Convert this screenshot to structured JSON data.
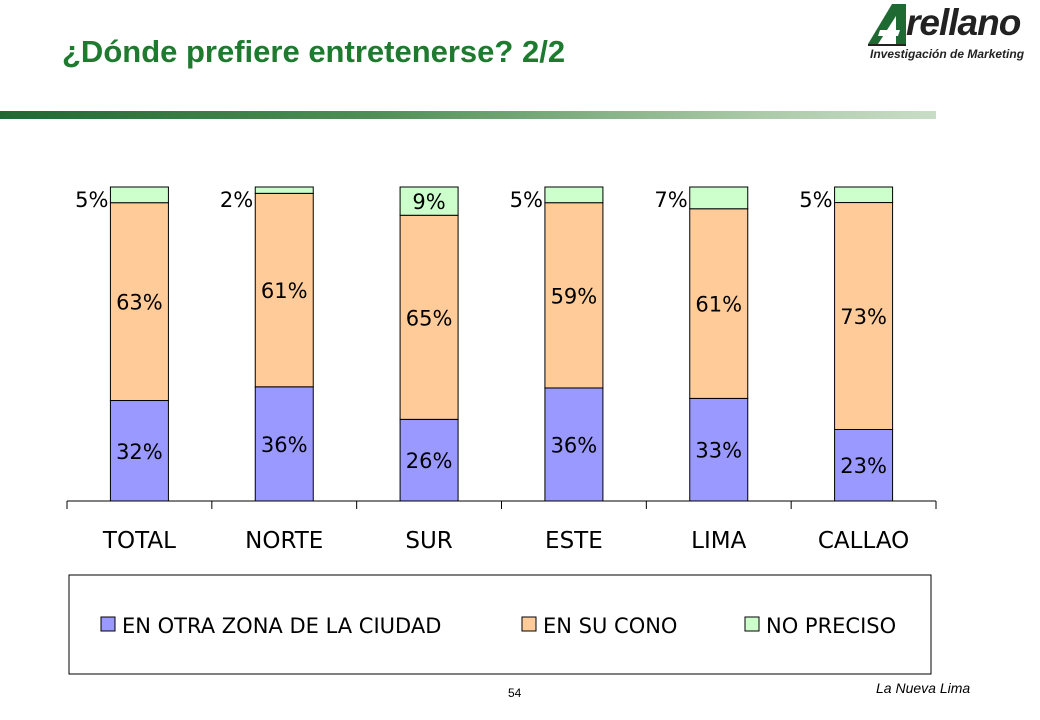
{
  "header": {
    "title": "¿Dónde prefiere entretenerse? 2/2",
    "logo_word": "rellano",
    "logo_sub": "Investigación de Marketing"
  },
  "footer": {
    "page_number": "54",
    "caption": "La Nueva Lima"
  },
  "chart_data": {
    "type": "bar",
    "stacked": true,
    "percent_stacked": true,
    "categories": [
      "TOTAL",
      "NORTE",
      "SUR",
      "ESTE",
      "LIMA",
      "CALLAO"
    ],
    "series": [
      {
        "name": "EN OTRA ZONA DE LA CIUDAD",
        "color": "#9999ff",
        "values": [
          32,
          36,
          26,
          36,
          33,
          23
        ],
        "labels": [
          "32%",
          "36%",
          "26%",
          "36%",
          "33%",
          "23%"
        ]
      },
      {
        "name": "EN SU CONO",
        "color": "#ffcc99",
        "values": [
          63,
          61,
          65,
          59,
          61,
          73
        ],
        "labels": [
          "63%",
          "61%",
          "65%",
          "59%",
          "61%",
          "73%"
        ]
      },
      {
        "name": "NO PRECISO",
        "color": "#ccffcc",
        "values": [
          5,
          2,
          9,
          5,
          7,
          5
        ],
        "labels": [
          "5%",
          "2%",
          "9%",
          "5%",
          "7%",
          "5%"
        ]
      }
    ],
    "ylim": [
      0,
      100
    ],
    "legend_position": "bottom",
    "grid": false
  }
}
